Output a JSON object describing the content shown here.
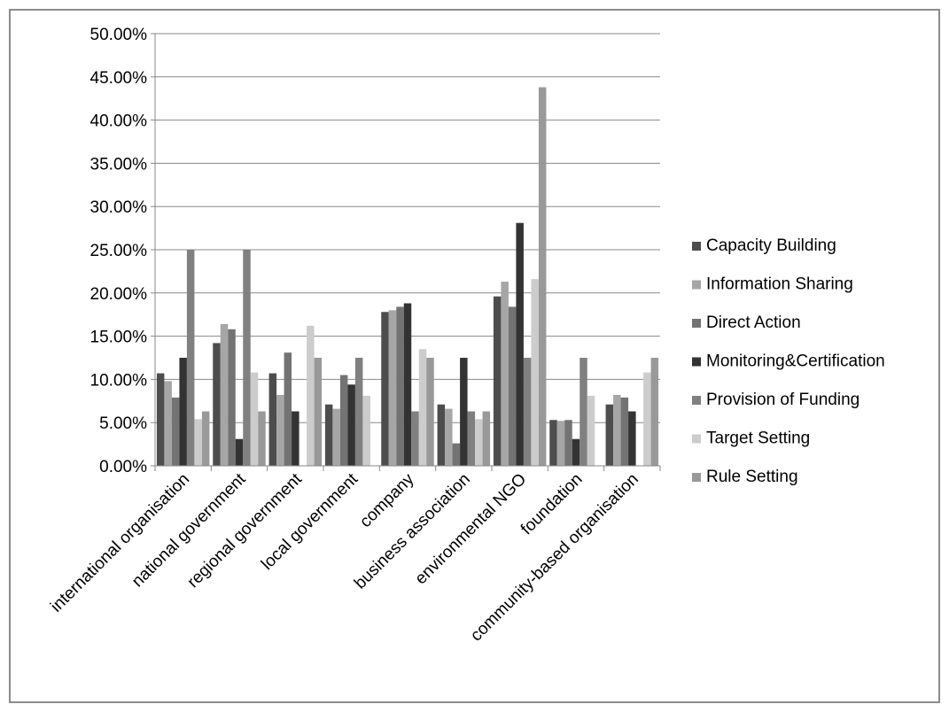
{
  "chart_data": {
    "type": "bar",
    "title": "",
    "xlabel": "",
    "ylabel": "",
    "ylim": [
      0,
      0.5
    ],
    "y_tick_step": 0.05,
    "y_tick_labels": [
      "0.00%",
      "5.00%",
      "10.00%",
      "15.00%",
      "20.00%",
      "25.00%",
      "30.00%",
      "35.00%",
      "40.00%",
      "45.00%",
      "50.00%"
    ],
    "grid": true,
    "legend_position": "right",
    "categories": [
      "international organisation",
      "national government",
      "regional government",
      "local government",
      "company",
      "business association",
      "environmental NGO",
      "foundation",
      "community-based organisation"
    ],
    "series": [
      {
        "name": "Capacity Building",
        "color": "#4d4d4d",
        "values": [
          0.107,
          0.142,
          0.107,
          0.071,
          0.178,
          0.071,
          0.196,
          0.053,
          0.071
        ]
      },
      {
        "name": "Information Sharing",
        "color": "#a6a6a6",
        "values": [
          0.098,
          0.164,
          0.082,
          0.066,
          0.18,
          0.066,
          0.213,
          0.052,
          0.082
        ]
      },
      {
        "name": "Direct Action",
        "color": "#737373",
        "values": [
          0.079,
          0.158,
          0.131,
          0.105,
          0.184,
          0.026,
          0.184,
          0.053,
          0.079
        ]
      },
      {
        "name": "Monitoring&Certification",
        "color": "#333333",
        "values": [
          0.125,
          0.031,
          0.063,
          0.094,
          0.188,
          0.125,
          0.281,
          0.031,
          0.063
        ]
      },
      {
        "name": "Provision of Funding",
        "color": "#808080",
        "values": [
          0.25,
          0.25,
          0.0,
          0.125,
          0.063,
          0.063,
          0.125,
          0.125,
          0.0
        ]
      },
      {
        "name": "Target Setting",
        "color": "#cccccc",
        "values": [
          0.054,
          0.108,
          0.162,
          0.081,
          0.135,
          0.054,
          0.216,
          0.081,
          0.108
        ]
      },
      {
        "name": "Rule Setting",
        "color": "#999999",
        "values": [
          0.063,
          0.063,
          0.125,
          0.0,
          0.125,
          0.063,
          0.438,
          0.0,
          0.125
        ]
      }
    ]
  }
}
